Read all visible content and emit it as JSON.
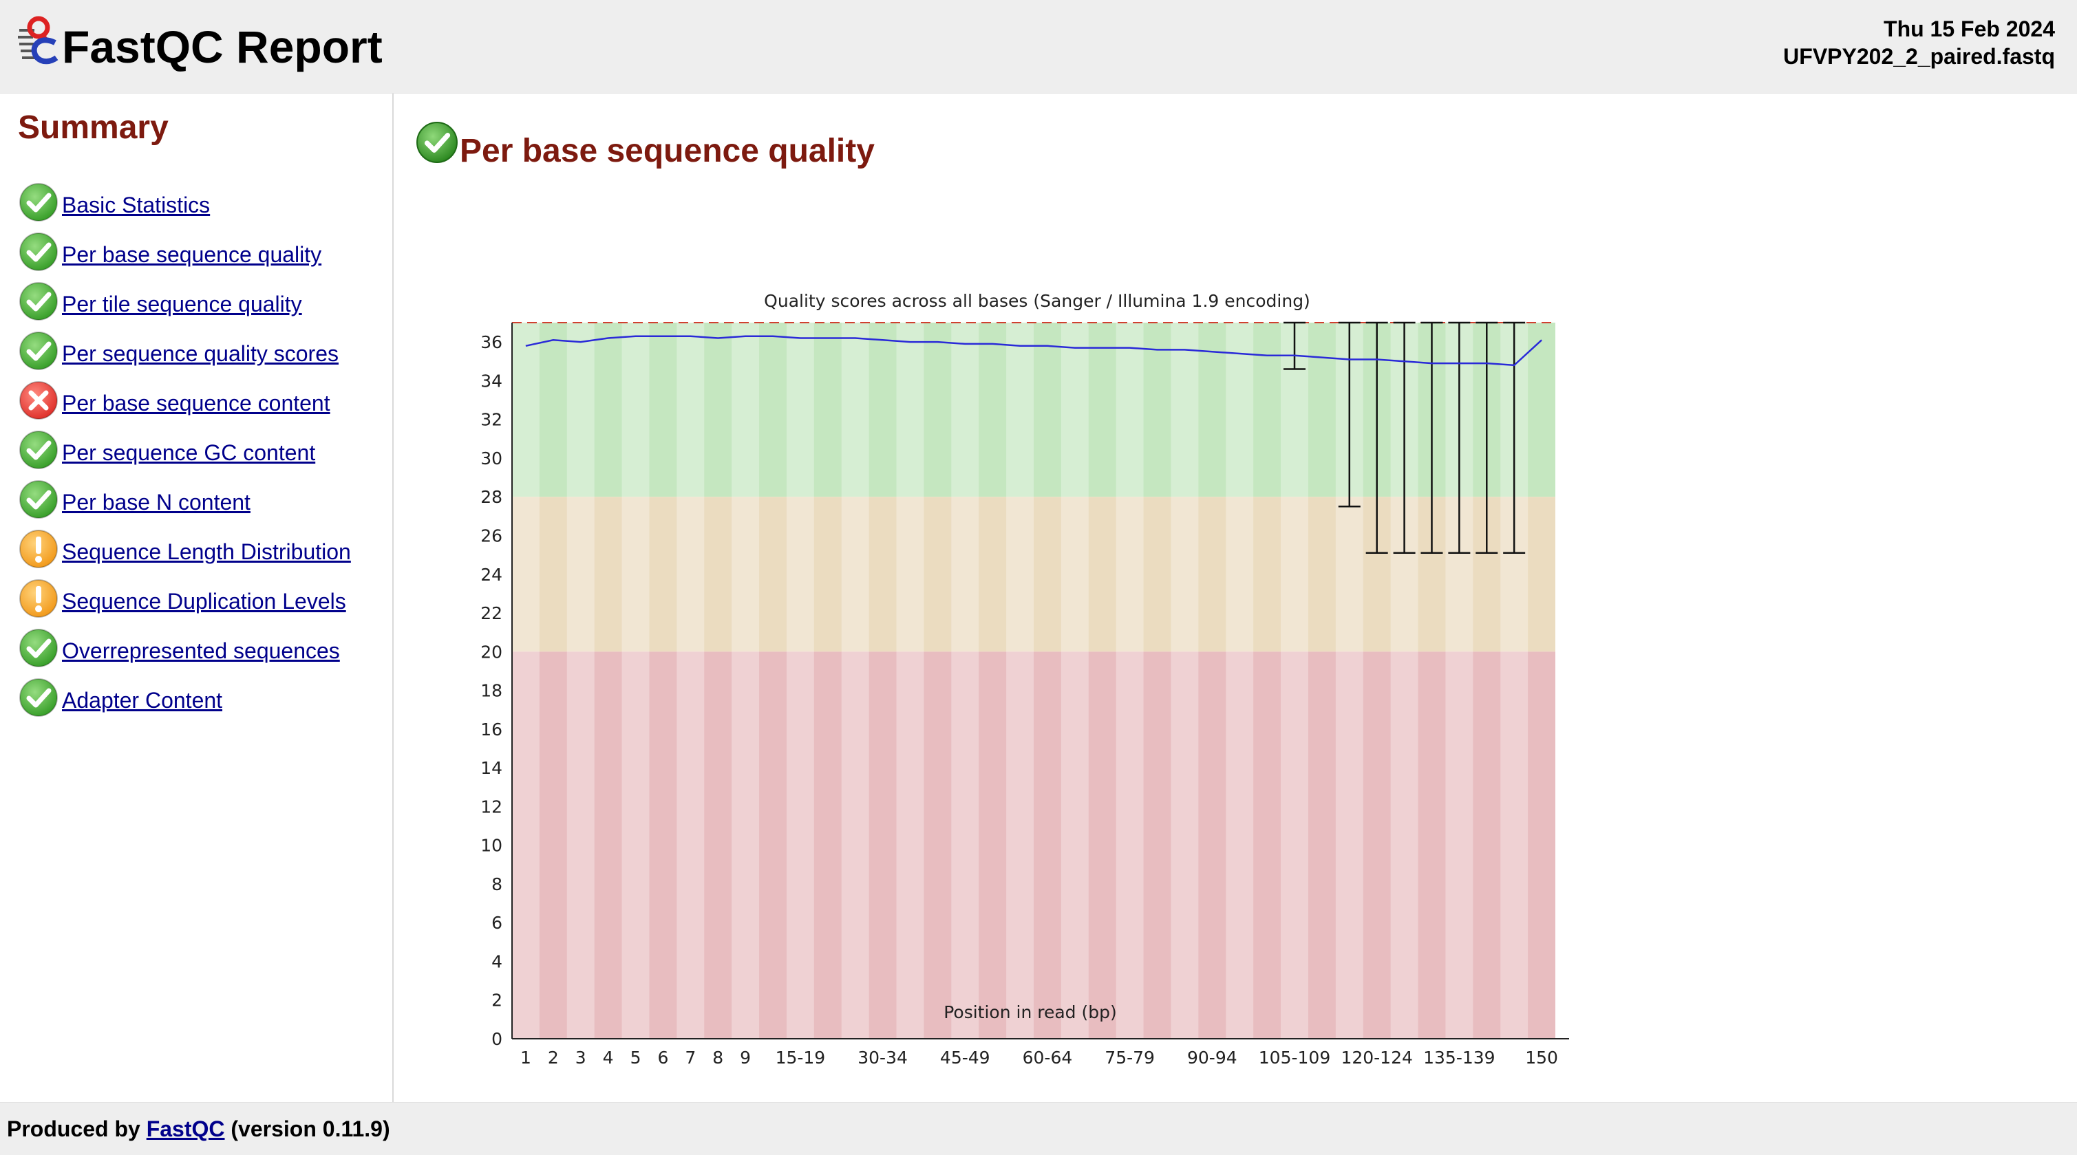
{
  "header": {
    "title": "FastQC Report",
    "date": "Thu 15 Feb 2024",
    "filename": "UFVPY202_2_paired.fastq"
  },
  "sidebar": {
    "title": "Summary",
    "items": [
      {
        "label": "Basic Statistics",
        "status": "pass"
      },
      {
        "label": "Per base sequence quality",
        "status": "pass"
      },
      {
        "label": "Per tile sequence quality",
        "status": "pass"
      },
      {
        "label": "Per sequence quality scores",
        "status": "pass"
      },
      {
        "label": "Per base sequence content",
        "status": "fail"
      },
      {
        "label": "Per sequence GC content",
        "status": "pass"
      },
      {
        "label": "Per base N content",
        "status": "pass"
      },
      {
        "label": "Sequence Length Distribution",
        "status": "warn"
      },
      {
        "label": "Sequence Duplication Levels",
        "status": "warn"
      },
      {
        "label": "Overrepresented sequences",
        "status": "pass"
      },
      {
        "label": "Adapter Content",
        "status": "pass"
      }
    ]
  },
  "main": {
    "section_title": "Per base sequence quality",
    "section_status": "pass"
  },
  "footer": {
    "prefix": "Produced by",
    "link": "FastQC",
    "suffix": "(version 0.11.9)"
  },
  "colors": {
    "pass": "#3aa02b",
    "warn": "#f29b1d",
    "fail": "#e0332d",
    "title": "#7d1a0f",
    "link": "#00008b",
    "zone_good": "#c5e7c0",
    "zone_mid": "#ebdcc0",
    "zone_bad": "#e8bdc0",
    "mean_line": "#2a2ad8"
  },
  "chart_data": {
    "type": "line",
    "title": "Quality scores across all bases (Sanger / Illumina 1.9 encoding)",
    "xlabel": "Position in read (bp)",
    "ylabel": "",
    "ylim": [
      0,
      37
    ],
    "yticks": [
      0,
      2,
      4,
      6,
      8,
      10,
      12,
      14,
      16,
      18,
      20,
      22,
      24,
      26,
      28,
      30,
      32,
      34,
      36
    ],
    "categories": [
      "1",
      "2",
      "3",
      "4",
      "5",
      "6",
      "7",
      "8",
      "9",
      "10-14",
      "15-19",
      "20-24",
      "25-29",
      "30-34",
      "35-39",
      "40-44",
      "45-49",
      "50-54",
      "55-59",
      "60-64",
      "65-69",
      "70-74",
      "75-79",
      "80-84",
      "85-89",
      "90-94",
      "95-99",
      "100-104",
      "105-109",
      "110-114",
      "115-119",
      "120-124",
      "125-129",
      "130-134",
      "135-139",
      "140-144",
      "145-149",
      "150"
    ],
    "xtick_labels": [
      "1",
      "2",
      "3",
      "4",
      "5",
      "6",
      "7",
      "8",
      "9",
      "15-19",
      "30-34",
      "45-49",
      "60-64",
      "75-79",
      "90-94",
      "105-109",
      "120-124",
      "135-139",
      "150"
    ],
    "zones": [
      {
        "from": 28,
        "to": 37,
        "name": "good"
      },
      {
        "from": 20,
        "to": 28,
        "name": "mid"
      },
      {
        "from": 0,
        "to": 20,
        "name": "bad"
      }
    ],
    "series": [
      {
        "values": [
          35.8,
          36.1,
          36.0,
          36.2,
          36.3,
          36.3,
          36.3,
          36.2,
          36.3,
          36.3,
          36.2,
          36.2,
          36.2,
          36.1,
          36.0,
          36.0,
          35.9,
          35.9,
          35.8,
          35.8,
          35.7,
          35.7,
          35.7,
          35.6,
          35.6,
          35.5,
          35.4,
          35.3,
          35.3,
          35.2,
          35.1,
          35.1,
          35.0,
          34.9,
          34.9,
          34.9,
          34.8,
          36.1
        ]
      }
    ],
    "whiskers": [
      {
        "x": "105-109",
        "low": 34.6,
        "high": 37
      },
      {
        "x": "115-119",
        "low": 27.5,
        "high": 37
      },
      {
        "x": "120-124",
        "low": 25.1,
        "high": 37
      },
      {
        "x": "125-129",
        "low": 25.1,
        "high": 37
      },
      {
        "x": "130-134",
        "low": 25.1,
        "high": 37
      },
      {
        "x": "135-139",
        "low": 25.1,
        "high": 37
      },
      {
        "x": "140-144",
        "low": 25.1,
        "high": 37
      },
      {
        "x": "145-149",
        "low": 25.1,
        "high": 37
      }
    ]
  }
}
